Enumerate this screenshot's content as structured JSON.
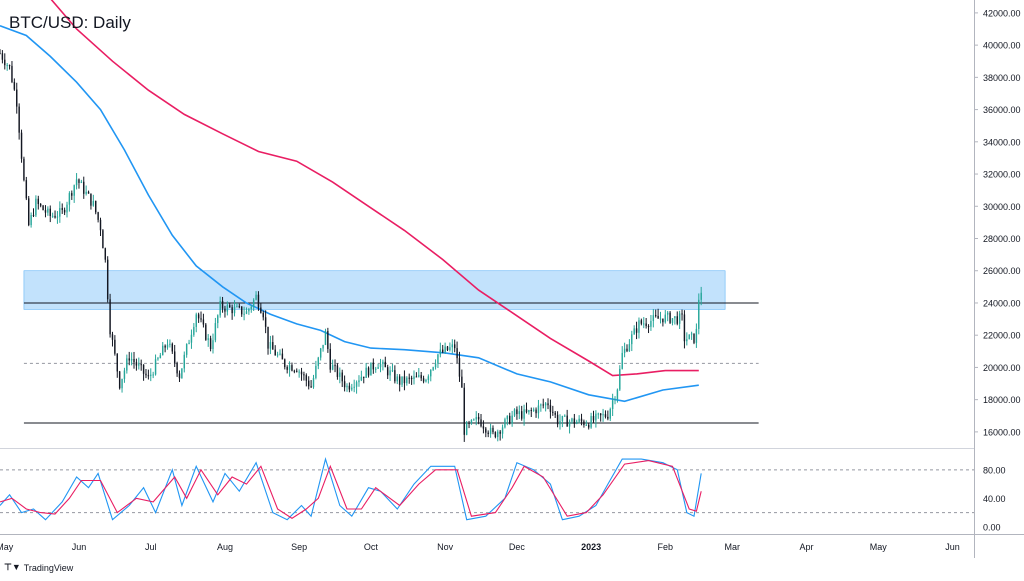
{
  "title": "BTC/USD: Daily",
  "brand": {
    "icon": "tradingview-logo-icon",
    "text": "TradingView"
  },
  "colors": {
    "up_candle": "#26a69a",
    "down_candle": "#131722",
    "ma_fast": "#2196f3",
    "ma_slow": "#e91e63",
    "zone_fill": "#90caf9",
    "stoch_k": "#2196f3",
    "stoch_d": "#e91e63",
    "grid": "#e0e3eb",
    "text": "#131722"
  },
  "chart_data": [
    {
      "type": "candlestick",
      "title": "BTC/USD: Daily",
      "xlabel": "",
      "ylabel": "",
      "x_ticks": [
        "May",
        "Jun",
        "Jul",
        "Aug",
        "Sep",
        "Oct",
        "Nov",
        "Dec",
        "2023",
        "Feb",
        "Mar",
        "Apr",
        "May",
        "Jun"
      ],
      "y_ticks": [
        "42000.00",
        "40000.00",
        "38000.00",
        "36000.00",
        "34000.00",
        "32000.00",
        "30000.00",
        "28000.00",
        "26000.00",
        "24000.00",
        "22000.00",
        "20000.00",
        "18000.00",
        "16000.00"
      ],
      "ylim": [
        15000,
        42800
      ],
      "x_range": [
        "2022-04-29",
        "2023-06-10"
      ],
      "grid": false,
      "price_path": [
        [
          "2022-04-29",
          39500
        ],
        [
          "2022-05-03",
          38600
        ],
        [
          "2022-05-06",
          36500
        ],
        [
          "2022-05-09",
          31500
        ],
        [
          "2022-05-11",
          28800
        ],
        [
          "2022-05-14",
          30200
        ],
        [
          "2022-05-20",
          29400
        ],
        [
          "2022-05-25",
          29600
        ],
        [
          "2022-05-31",
          31700
        ],
        [
          "2022-06-07",
          30100
        ],
        [
          "2022-06-10",
          28700
        ],
        [
          "2022-06-12",
          26600
        ],
        [
          "2022-06-14",
          22400
        ],
        [
          "2022-06-18",
          19000
        ],
        [
          "2022-06-22",
          20700
        ],
        [
          "2022-06-30",
          19300
        ],
        [
          "2022-07-08",
          21600
        ],
        [
          "2022-07-13",
          19500
        ],
        [
          "2022-07-20",
          23400
        ],
        [
          "2022-07-26",
          21300
        ],
        [
          "2022-07-30",
          23800
        ],
        [
          "2022-08-10",
          23400
        ],
        [
          "2022-08-14",
          24400
        ],
        [
          "2022-08-17",
          23400
        ],
        [
          "2022-08-19",
          21400
        ],
        [
          "2022-08-26",
          20200
        ],
        [
          "2022-08-31",
          20000
        ],
        [
          "2022-09-06",
          18800
        ],
        [
          "2022-09-12",
          22100
        ],
        [
          "2022-09-14",
          20200
        ],
        [
          "2022-09-21",
          18800
        ],
        [
          "2022-10-04",
          20300
        ],
        [
          "2022-10-13",
          19100
        ],
        [
          "2022-10-24",
          19400
        ],
        [
          "2022-10-29",
          20800
        ],
        [
          "2022-11-05",
          21300
        ],
        [
          "2022-11-08",
          18600
        ],
        [
          "2022-11-09",
          16100
        ],
        [
          "2022-11-15",
          16800
        ],
        [
          "2022-11-21",
          15800
        ],
        [
          "2022-11-30",
          17100
        ],
        [
          "2022-12-05",
          17100
        ],
        [
          "2022-12-14",
          17800
        ],
        [
          "2022-12-18",
          16700
        ],
        [
          "2022-12-31",
          16600
        ],
        [
          "2023-01-08",
          17100
        ],
        [
          "2023-01-12",
          18800
        ],
        [
          "2023-01-14",
          20800
        ],
        [
          "2023-01-21",
          22700
        ],
        [
          "2023-01-31",
          23100
        ],
        [
          "2023-02-08",
          23000
        ],
        [
          "2023-02-09",
          21800
        ],
        [
          "2023-02-13",
          21800
        ],
        [
          "2023-02-14",
          22200
        ],
        [
          "2023-02-15",
          24300
        ],
        [
          "2023-02-16",
          24800
        ]
      ],
      "overlays": [
        {
          "kind": "moving-average",
          "color": "#2196f3",
          "values": [
            [
              "2022-04-29",
              41200
            ],
            [
              "2022-05-10",
              40600
            ],
            [
              "2022-05-20",
              39300
            ],
            [
              "2022-05-31",
              37700
            ],
            [
              "2022-06-10",
              36000
            ],
            [
              "2022-06-20",
              33500
            ],
            [
              "2022-06-30",
              30700
            ],
            [
              "2022-07-10",
              28200
            ],
            [
              "2022-07-20",
              26300
            ],
            [
              "2022-07-31",
              25000
            ],
            [
              "2022-08-10",
              24000
            ],
            [
              "2022-08-20",
              23300
            ],
            [
              "2022-08-31",
              22700
            ],
            [
              "2022-09-10",
              22300
            ],
            [
              "2022-09-20",
              21600
            ],
            [
              "2022-10-01",
              21200
            ],
            [
              "2022-10-15",
              21100
            ],
            [
              "2022-11-01",
              20900
            ],
            [
              "2022-11-15",
              20600
            ],
            [
              "2022-12-01",
              19600
            ],
            [
              "2022-12-15",
              19100
            ],
            [
              "2022-12-31",
              18300
            ],
            [
              "2023-01-15",
              17900
            ],
            [
              "2023-01-31",
              18600
            ],
            [
              "2023-02-15",
              18900
            ]
          ]
        },
        {
          "kind": "moving-average",
          "color": "#e91e63",
          "values": [
            [
              "2022-05-20",
              42900
            ],
            [
              "2022-05-31",
              41000
            ],
            [
              "2022-06-15",
              39000
            ],
            [
              "2022-06-30",
              37200
            ],
            [
              "2022-07-15",
              35700
            ],
            [
              "2022-07-31",
              34500
            ],
            [
              "2022-08-15",
              33400
            ],
            [
              "2022-08-31",
              32800
            ],
            [
              "2022-09-15",
              31500
            ],
            [
              "2022-09-30",
              30000
            ],
            [
              "2022-10-15",
              28500
            ],
            [
              "2022-10-31",
              26700
            ],
            [
              "2022-11-15",
              24800
            ],
            [
              "2022-11-30",
              23300
            ],
            [
              "2022-12-15",
              21800
            ],
            [
              "2022-12-31",
              20400
            ],
            [
              "2023-01-10",
              19500
            ],
            [
              "2023-01-20",
              19600
            ],
            [
              "2023-02-01",
              19800
            ],
            [
              "2023-02-15",
              19800
            ]
          ]
        }
      ],
      "zones": [
        {
          "kind": "resistance-zone",
          "from": "2022-05-09",
          "to": "2023-02-26",
          "low": 23600,
          "high": 26000
        }
      ],
      "horizontal_levels": [
        {
          "value": 24000,
          "style": "solid",
          "from": "2022-05-09",
          "to": "2023-03-12"
        },
        {
          "value": 20250,
          "style": "dashed",
          "from": "2022-05-09",
          "to": "2023-03-12"
        },
        {
          "value": 16550,
          "style": "solid",
          "from": "2022-05-09",
          "to": "2023-03-12"
        }
      ]
    },
    {
      "type": "line",
      "title": "",
      "xlabel": "",
      "ylabel": "",
      "y_ticks": [
        "80.00",
        "40.00",
        "0.00"
      ],
      "ylim": [
        -10,
        105
      ],
      "reference_lines": [
        80,
        20
      ],
      "series": [
        {
          "color": "#2196f3",
          "values": [
            [
              "2022-04-29",
              30
            ],
            [
              "2022-05-03",
              45
            ],
            [
              "2022-05-08",
              20
            ],
            [
              "2022-05-13",
              25
            ],
            [
              "2022-05-18",
              10
            ],
            [
              "2022-05-25",
              35
            ],
            [
              "2022-05-31",
              70
            ],
            [
              "2022-06-05",
              55
            ],
            [
              "2022-06-09",
              75
            ],
            [
              "2022-06-15",
              10
            ],
            [
              "2022-06-22",
              30
            ],
            [
              "2022-06-28",
              55
            ],
            [
              "2022-07-03",
              20
            ],
            [
              "2022-07-10",
              80
            ],
            [
              "2022-07-14",
              30
            ],
            [
              "2022-07-20",
              85
            ],
            [
              "2022-07-27",
              35
            ],
            [
              "2022-08-01",
              75
            ],
            [
              "2022-08-07",
              50
            ],
            [
              "2022-08-14",
              90
            ],
            [
              "2022-08-21",
              20
            ],
            [
              "2022-08-27",
              10
            ],
            [
              "2022-09-02",
              30
            ],
            [
              "2022-09-06",
              15
            ],
            [
              "2022-09-12",
              95
            ],
            [
              "2022-09-18",
              30
            ],
            [
              "2022-09-23",
              15
            ],
            [
              "2022-09-30",
              55
            ],
            [
              "2022-10-05",
              50
            ],
            [
              "2022-10-12",
              25
            ],
            [
              "2022-10-19",
              60
            ],
            [
              "2022-10-26",
              85
            ],
            [
              "2022-11-05",
              85
            ],
            [
              "2022-11-10",
              10
            ],
            [
              "2022-11-18",
              15
            ],
            [
              "2022-11-26",
              40
            ],
            [
              "2022-12-01",
              90
            ],
            [
              "2022-12-08",
              80
            ],
            [
              "2022-12-15",
              60
            ],
            [
              "2022-12-20",
              10
            ],
            [
              "2022-12-27",
              15
            ],
            [
              "2023-01-03",
              30
            ],
            [
              "2023-01-08",
              60
            ],
            [
              "2023-01-14",
              95
            ],
            [
              "2023-01-22",
              95
            ],
            [
              "2023-01-31",
              90
            ],
            [
              "2023-02-06",
              80
            ],
            [
              "2023-02-10",
              20
            ],
            [
              "2023-02-13",
              15
            ],
            [
              "2023-02-16",
              75
            ]
          ]
        },
        {
          "color": "#e91e63",
          "values": [
            [
              "2022-04-29",
              35
            ],
            [
              "2022-05-04",
              40
            ],
            [
              "2022-05-10",
              25
            ],
            [
              "2022-05-16",
              20
            ],
            [
              "2022-05-22",
              18
            ],
            [
              "2022-05-28",
              40
            ],
            [
              "2022-06-02",
              65
            ],
            [
              "2022-06-10",
              65
            ],
            [
              "2022-06-17",
              20
            ],
            [
              "2022-06-25",
              40
            ],
            [
              "2022-07-02",
              35
            ],
            [
              "2022-07-11",
              70
            ],
            [
              "2022-07-16",
              40
            ],
            [
              "2022-07-22",
              80
            ],
            [
              "2022-07-29",
              45
            ],
            [
              "2022-08-04",
              70
            ],
            [
              "2022-08-10",
              60
            ],
            [
              "2022-08-16",
              85
            ],
            [
              "2022-08-23",
              25
            ],
            [
              "2022-08-29",
              12
            ],
            [
              "2022-09-04",
              25
            ],
            [
              "2022-09-09",
              40
            ],
            [
              "2022-09-14",
              85
            ],
            [
              "2022-09-21",
              25
            ],
            [
              "2022-09-27",
              25
            ],
            [
              "2022-10-03",
              55
            ],
            [
              "2022-10-13",
              30
            ],
            [
              "2022-10-21",
              60
            ],
            [
              "2022-10-28",
              80
            ],
            [
              "2022-11-06",
              80
            ],
            [
              "2022-11-12",
              15
            ],
            [
              "2022-11-22",
              20
            ],
            [
              "2022-11-29",
              55
            ],
            [
              "2022-12-04",
              85
            ],
            [
              "2022-12-12",
              70
            ],
            [
              "2022-12-22",
              15
            ],
            [
              "2022-12-30",
              20
            ],
            [
              "2023-01-06",
              45
            ],
            [
              "2023-01-15",
              88
            ],
            [
              "2023-01-25",
              93
            ],
            [
              "2023-02-04",
              85
            ],
            [
              "2023-02-11",
              25
            ],
            [
              "2023-02-14",
              22
            ],
            [
              "2023-02-16",
              50
            ]
          ]
        }
      ]
    }
  ]
}
